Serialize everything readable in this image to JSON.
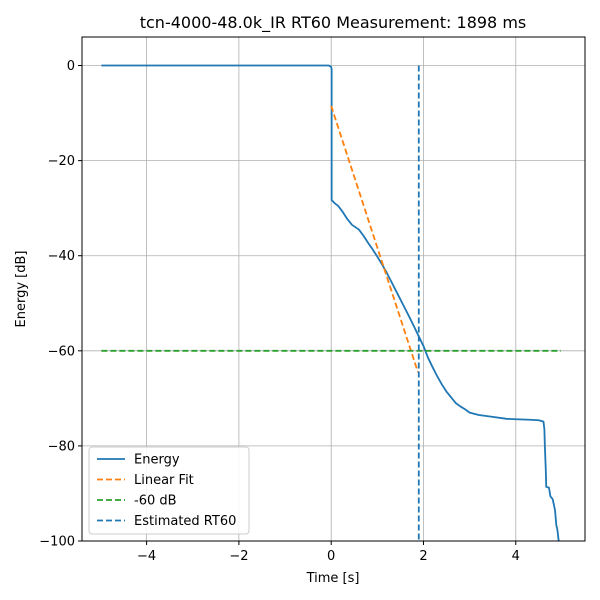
{
  "chart_data": {
    "type": "line",
    "title": "tcn-4000-48.0k_IR RT60 Measurement: 1898 ms",
    "xlabel": "Time [s]",
    "ylabel": "Energy [dB]",
    "xlim": [
      -5.4,
      5.5
    ],
    "ylim": [
      -100,
      6
    ],
    "xticks": [
      -4,
      -2,
      0,
      2,
      4
    ],
    "yticks": [
      0,
      -20,
      -40,
      -60,
      -80,
      -100
    ],
    "xtick_labels": [
      "−4",
      "−2",
      "0",
      "2",
      "4"
    ],
    "ytick_labels": [
      "0",
      "−20",
      "−40",
      "−60",
      "−80",
      "−100"
    ],
    "grid": true,
    "legend_position": "lower-left",
    "series": [
      {
        "name": "Energy",
        "color": "#1f77b4",
        "style": "solid",
        "points": [
          [
            -4.98,
            0
          ],
          [
            -2,
            0
          ],
          [
            -0.5,
            0
          ],
          [
            -0.05,
            0
          ],
          [
            0,
            -0.3
          ],
          [
            0.01,
            -0.8
          ],
          [
            0.01,
            -28.3
          ],
          [
            0.08,
            -29
          ],
          [
            0.15,
            -29.5
          ],
          [
            0.25,
            -30.8
          ],
          [
            0.35,
            -32.3
          ],
          [
            0.45,
            -33.5
          ],
          [
            0.6,
            -34.5
          ],
          [
            0.7,
            -35.8
          ],
          [
            0.8,
            -37.3
          ],
          [
            0.9,
            -38.7
          ],
          [
            1.0,
            -40.2
          ],
          [
            1.1,
            -41.8
          ],
          [
            1.2,
            -43.5
          ],
          [
            1.3,
            -45.4
          ],
          [
            1.4,
            -47.3
          ],
          [
            1.5,
            -49.2
          ],
          [
            1.6,
            -51.1
          ],
          [
            1.7,
            -53
          ],
          [
            1.8,
            -55
          ],
          [
            1.9,
            -57
          ],
          [
            2.0,
            -59
          ],
          [
            2.1,
            -61.5
          ],
          [
            2.2,
            -63.5
          ],
          [
            2.3,
            -65.4
          ],
          [
            2.4,
            -67.1
          ],
          [
            2.5,
            -68.6
          ],
          [
            2.6,
            -69.8
          ],
          [
            2.7,
            -71
          ],
          [
            2.8,
            -71.7
          ],
          [
            2.9,
            -72.3
          ],
          [
            3.0,
            -73
          ],
          [
            3.2,
            -73.5
          ],
          [
            3.5,
            -73.9
          ],
          [
            3.8,
            -74.3
          ],
          [
            4.0,
            -74.4
          ],
          [
            4.3,
            -74.5
          ],
          [
            4.5,
            -74.6
          ],
          [
            4.6,
            -74.9
          ],
          [
            4.62,
            -76.5
          ],
          [
            4.63,
            -80
          ],
          [
            4.65,
            -85
          ],
          [
            4.66,
            -88.6
          ],
          [
            4.72,
            -88.8
          ],
          [
            4.75,
            -90.6
          ],
          [
            4.8,
            -91.2
          ],
          [
            4.85,
            -93.5
          ],
          [
            4.88,
            -96.8
          ],
          [
            4.9,
            -97.5
          ],
          [
            4.93,
            -100
          ]
        ]
      },
      {
        "name": "Linear Fit",
        "color": "#ff7f0e",
        "style": "dashed",
        "points": [
          [
            0.0,
            -8.5
          ],
          [
            1.88,
            -64.5
          ]
        ]
      },
      {
        "name": "-60 dB",
        "color": "#2ca02c",
        "style": "dashed",
        "points": [
          [
            -4.98,
            -60
          ],
          [
            4.98,
            -60
          ]
        ]
      },
      {
        "name": "Estimated RT60",
        "color": "#1f77b4",
        "style": "dashed",
        "points": [
          [
            1.898,
            0
          ],
          [
            1.898,
            -100
          ]
        ]
      }
    ]
  }
}
